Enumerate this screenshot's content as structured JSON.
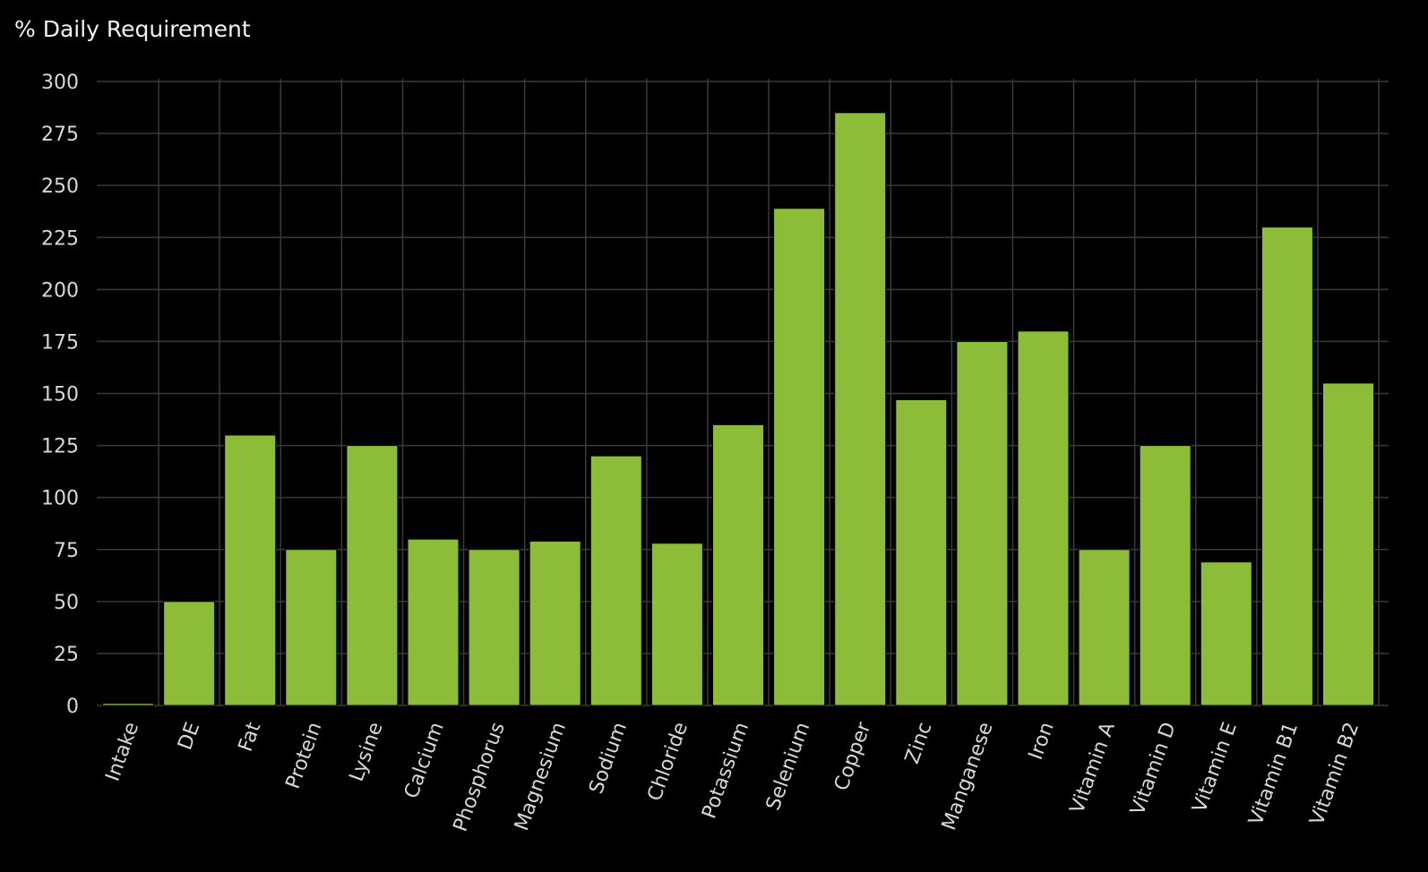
{
  "chart_data": {
    "type": "bar",
    "title": "",
    "xlabel": "",
    "ylabel": "% Daily Requirement",
    "ylim": [
      0,
      300
    ],
    "yticks": [
      0,
      25,
      50,
      75,
      100,
      125,
      150,
      175,
      200,
      225,
      250,
      275,
      300
    ],
    "grid": true,
    "legend": "none",
    "bar_color": "#8dbd38",
    "background_color": "#000000",
    "grid_color": "#3a3a3a",
    "categories": [
      "Intake",
      "DE",
      "Fat",
      "Protein",
      "Lysine",
      "Calcium",
      "Phosphorus",
      "Magnesium",
      "Sodium",
      "Chloride",
      "Potassium",
      "Selenium",
      "Copper",
      "Zinc",
      "Manganese",
      "Iron",
      "Vitamin A",
      "Vitamin D",
      "Vitamin E",
      "Vitamin B1",
      "Vitamin B2"
    ],
    "values": [
      1,
      50,
      130,
      75,
      125,
      80,
      75,
      79,
      120,
      78,
      135,
      239,
      285,
      147,
      175,
      180,
      75,
      125,
      69,
      230,
      155
    ]
  }
}
